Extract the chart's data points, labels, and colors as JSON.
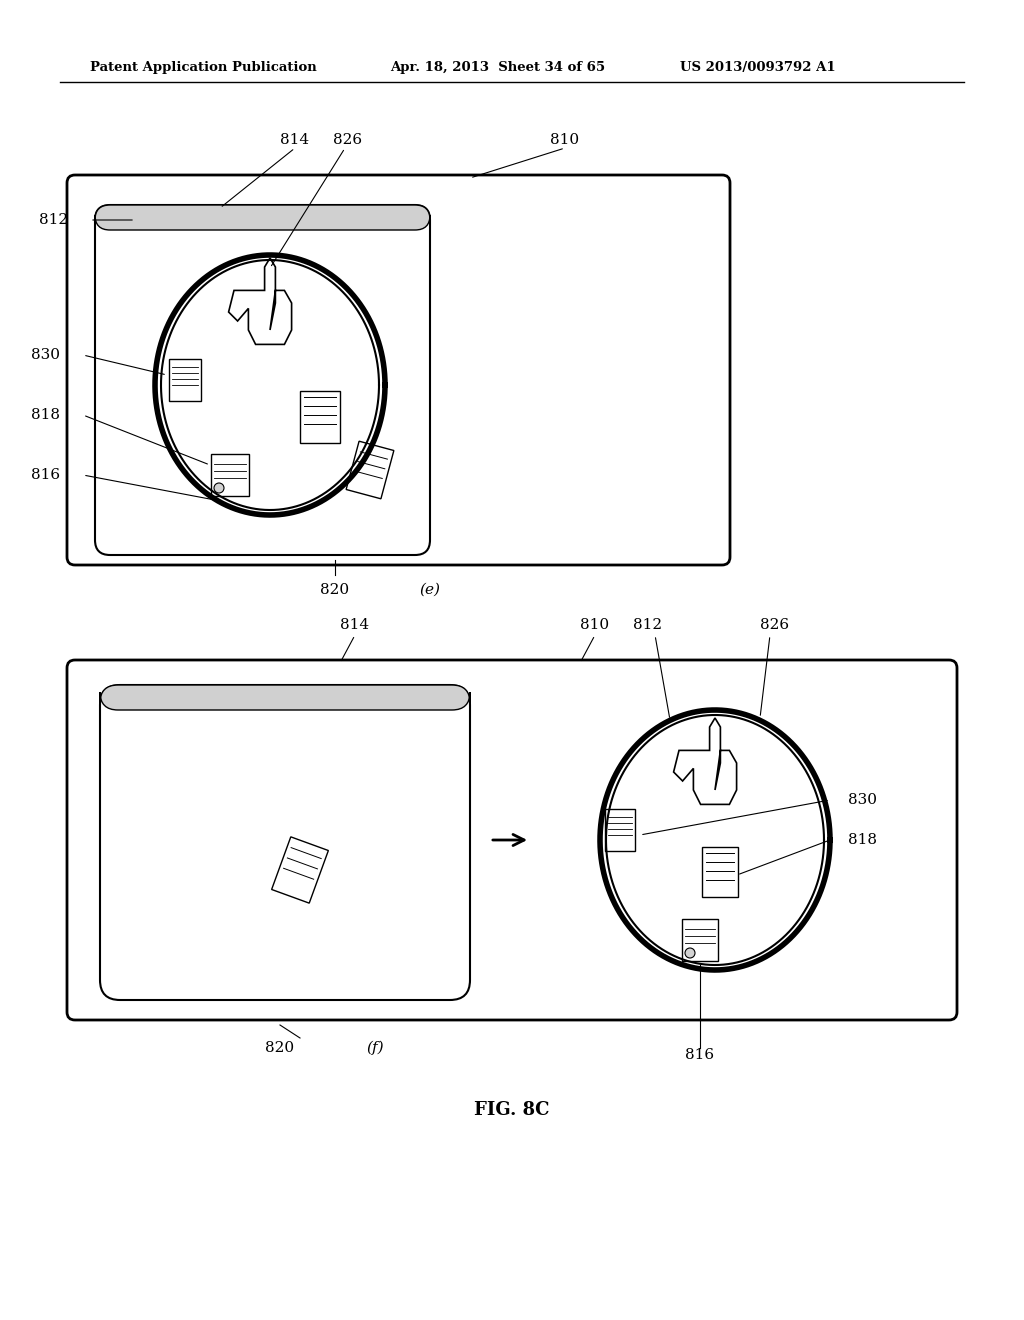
{
  "bg_color": "#ffffff",
  "header_text": "Patent Application Publication",
  "header_date": "Apr. 18, 2013  Sheet 34 of 65",
  "header_patent": "US 2013/0093792 A1",
  "fig_label": "FIG. 8C",
  "diagram_e_label": "(e)",
  "diagram_f_label": "(f)",
  "ref_820_label": "820",
  "ref_810_label": "810",
  "ref_814_label": "814",
  "ref_826_label": "826",
  "ref_812_label": "812",
  "ref_830_label": "830",
  "ref_818_label": "818",
  "ref_816_label": "816"
}
